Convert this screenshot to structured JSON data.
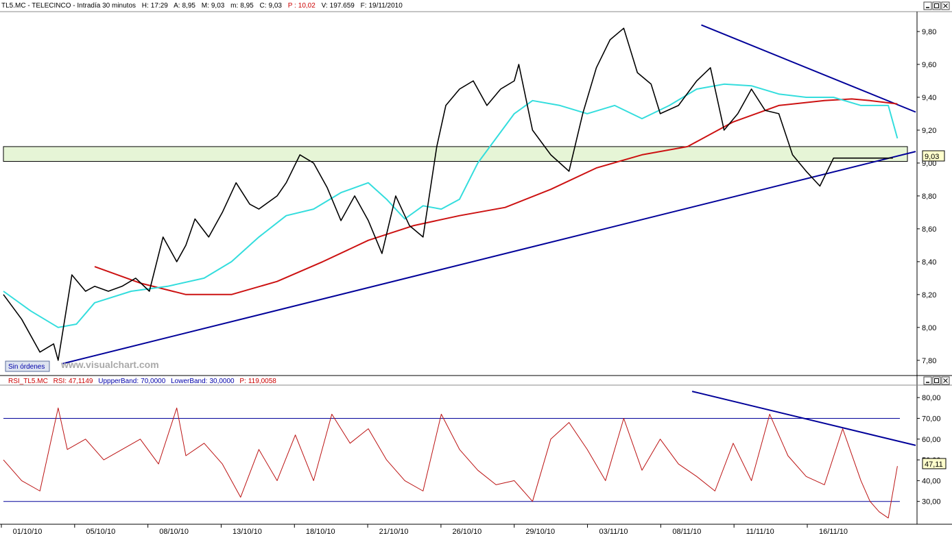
{
  "price_header": {
    "symbol": "TL5.MC",
    "sep1": " - ",
    "name": "TELECINCO",
    "sep2": " - ",
    "interval": "Intradía 30 minutos",
    "h_label": "H:",
    "h_value": "17:29",
    "a_label": "A:",
    "a_value": "8,95",
    "m_label": "M:",
    "m_value": "9,03",
    "mn_label": "m:",
    "mn_value": "8,95",
    "c_label": "C:",
    "c_value": "9,03",
    "p_label": "P :",
    "p_value": "10,02",
    "v_label": "V:",
    "v_value": "197.659",
    "f_label": "F:",
    "f_value": "19/11/2010"
  },
  "rsi_header": {
    "name": "RSI_TL5.MC",
    "rsi_label": "RSI:",
    "rsi_value": "47,1149",
    "upper_label": "UppperBand:",
    "upper_value": "70,0000",
    "lower_label": "LowerBand:",
    "lower_value": "30,0000",
    "p_label": "P:",
    "p_value": "119,0058"
  },
  "watermark": "www.visualchart.com",
  "orders_button": "Sin órdenes",
  "last_price_label": "9,03",
  "last_rsi_label": "47,11",
  "colors": {
    "price_bars": "#000000",
    "sma_fast": "#33dddd",
    "sma_slow": "#cc1111",
    "trendline": "#000099",
    "rsi_line": "#bb1111",
    "rsi_bands": "#000099",
    "zone_fill": "#e6f5d6",
    "header_red": "#cc0000",
    "header_blue": "#0000aa"
  },
  "chart_data": [
    {
      "type": "line",
      "panel": "price",
      "description_from_chart": "TL5.MC intraday 30 minute price bars with moving averages and trend lines",
      "x_tick_labels": [
        "01/10/10",
        "05/10/10",
        "08/10/10",
        "13/10/10",
        "18/10/10",
        "21/10/10",
        "26/10/10",
        "29/10/10",
        "03/11/10",
        "08/11/10",
        "11/11/10",
        "16/11/10"
      ],
      "y_ticks": [
        "7,80",
        "8,00",
        "8,20",
        "8,40",
        "8,60",
        "8,80",
        "9,00",
        "9,20",
        "9,40",
        "9,60",
        "9,80"
      ],
      "ylim": [
        7.72,
        9.9
      ],
      "xlim": [
        0,
        1
      ],
      "series": [
        {
          "role": "price",
          "x": [
            0.0,
            0.02,
            0.04,
            0.055,
            0.06,
            0.075,
            0.09,
            0.1,
            0.115,
            0.13,
            0.145,
            0.16,
            0.175,
            0.19,
            0.2,
            0.21,
            0.225,
            0.24,
            0.255,
            0.27,
            0.28,
            0.3,
            0.31,
            0.325,
            0.34,
            0.355,
            0.37,
            0.385,
            0.4,
            0.415,
            0.43,
            0.445,
            0.46,
            0.475,
            0.485,
            0.5,
            0.515,
            0.53,
            0.545,
            0.56,
            0.565,
            0.58,
            0.6,
            0.62,
            0.635,
            0.65,
            0.665,
            0.68,
            0.695,
            0.71,
            0.72,
            0.74,
            0.76,
            0.775,
            0.79,
            0.805,
            0.82,
            0.835,
            0.85,
            0.865,
            0.88,
            0.895,
            0.91,
            0.925,
            0.94,
            0.955,
            0.97,
            0.975
          ],
          "y": [
            8.2,
            8.05,
            7.85,
            7.9,
            7.8,
            8.32,
            8.22,
            8.25,
            8.22,
            8.25,
            8.3,
            8.22,
            8.55,
            8.4,
            8.5,
            8.66,
            8.55,
            8.7,
            8.88,
            8.75,
            8.72,
            8.8,
            8.88,
            9.05,
            9.0,
            8.85,
            8.65,
            8.8,
            8.65,
            8.45,
            8.8,
            8.62,
            8.55,
            9.1,
            9.35,
            9.45,
            9.5,
            9.35,
            9.45,
            9.5,
            9.6,
            9.2,
            9.05,
            8.95,
            9.3,
            9.58,
            9.75,
            9.82,
            9.55,
            9.48,
            9.3,
            9.35,
            9.5,
            9.58,
            9.2,
            9.3,
            9.45,
            9.32,
            9.3,
            9.05,
            8.95,
            8.86,
            9.03,
            9.03,
            9.03,
            9.03,
            9.03,
            9.03
          ]
        },
        {
          "role": "sma_fast",
          "x": [
            0.0,
            0.03,
            0.06,
            0.08,
            0.1,
            0.14,
            0.18,
            0.22,
            0.25,
            0.28,
            0.31,
            0.34,
            0.37,
            0.4,
            0.42,
            0.44,
            0.46,
            0.48,
            0.5,
            0.52,
            0.54,
            0.56,
            0.58,
            0.61,
            0.64,
            0.67,
            0.7,
            0.73,
            0.76,
            0.79,
            0.82,
            0.85,
            0.88,
            0.91,
            0.94,
            0.97,
            0.98
          ],
          "y": [
            8.22,
            8.1,
            8.0,
            8.02,
            8.15,
            8.22,
            8.25,
            8.3,
            8.4,
            8.55,
            8.68,
            8.72,
            8.82,
            8.88,
            8.78,
            8.66,
            8.74,
            8.72,
            8.78,
            9.0,
            9.15,
            9.3,
            9.38,
            9.35,
            9.3,
            9.35,
            9.27,
            9.35,
            9.45,
            9.48,
            9.47,
            9.42,
            9.4,
            9.4,
            9.35,
            9.35,
            9.15
          ]
        },
        {
          "role": "sma_slow",
          "x": [
            0.1,
            0.15,
            0.2,
            0.25,
            0.3,
            0.35,
            0.4,
            0.45,
            0.5,
            0.55,
            0.6,
            0.65,
            0.7,
            0.75,
            0.8,
            0.85,
            0.9,
            0.93,
            0.95,
            0.98
          ],
          "y": [
            8.37,
            8.27,
            8.2,
            8.2,
            8.28,
            8.4,
            8.53,
            8.62,
            8.68,
            8.73,
            8.84,
            8.97,
            9.05,
            9.1,
            9.25,
            9.35,
            9.38,
            9.39,
            9.38,
            9.36
          ]
        },
        {
          "role": "trendline_support",
          "x": [
            0.065,
            1.0
          ],
          "y": [
            7.78,
            9.07
          ]
        },
        {
          "role": "trendline_resistance",
          "x": [
            0.765,
            1.0
          ],
          "y": [
            9.84,
            9.31
          ]
        }
      ],
      "zone": {
        "y_low": 9.01,
        "y_high": 9.1
      }
    },
    {
      "type": "line",
      "panel": "rsi",
      "y_ticks": [
        "30,00",
        "40,00",
        "50,00",
        "60,00",
        "70,00",
        "80,00"
      ],
      "ylim": [
        20,
        85
      ],
      "xlim": [
        0,
        1
      ],
      "upper_band": 70,
      "lower_band": 30,
      "series": [
        {
          "role": "rsi",
          "x": [
            0.0,
            0.02,
            0.04,
            0.06,
            0.07,
            0.09,
            0.11,
            0.13,
            0.15,
            0.17,
            0.19,
            0.2,
            0.22,
            0.24,
            0.25,
            0.26,
            0.28,
            0.3,
            0.32,
            0.34,
            0.36,
            0.38,
            0.4,
            0.42,
            0.44,
            0.46,
            0.48,
            0.5,
            0.52,
            0.54,
            0.56,
            0.58,
            0.6,
            0.62,
            0.64,
            0.66,
            0.68,
            0.7,
            0.72,
            0.74,
            0.76,
            0.78,
            0.8,
            0.82,
            0.84,
            0.86,
            0.88,
            0.9,
            0.92,
            0.94,
            0.95,
            0.96,
            0.97,
            0.98
          ],
          "y": [
            50,
            40,
            35,
            75,
            55,
            60,
            50,
            55,
            60,
            48,
            75,
            52,
            58,
            48,
            40,
            32,
            55,
            40,
            62,
            40,
            72,
            58,
            65,
            50,
            40,
            35,
            72,
            55,
            45,
            38,
            40,
            30,
            60,
            68,
            55,
            40,
            70,
            45,
            60,
            48,
            42,
            35,
            58,
            40,
            72,
            52,
            42,
            38,
            65,
            40,
            30,
            25,
            22,
            47
          ]
        },
        {
          "role": "trendline_rsi",
          "x": [
            0.755,
            1.0
          ],
          "y": [
            83,
            57
          ]
        }
      ]
    }
  ]
}
